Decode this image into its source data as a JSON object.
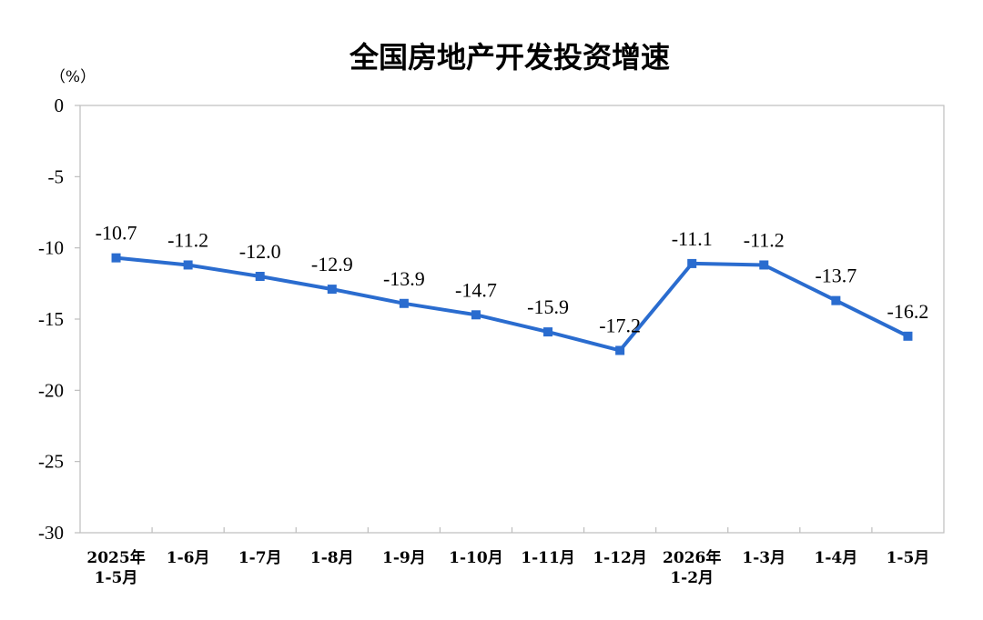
{
  "chart_data": {
    "type": "line",
    "title": "全国房地产开发投资增速",
    "unit_label": "（%）",
    "categories": [
      [
        "2025年",
        "1-5月"
      ],
      [
        "1-6月"
      ],
      [
        "1-7月"
      ],
      [
        "1-8月"
      ],
      [
        "1-9月"
      ],
      [
        "1-10月"
      ],
      [
        "1-11月"
      ],
      [
        "1-12月"
      ],
      [
        "2026年",
        "1-2月"
      ],
      [
        "1-3月"
      ],
      [
        "1-4月"
      ],
      [
        "1-5月"
      ]
    ],
    "values": [
      -10.7,
      -11.2,
      -12.0,
      -12.9,
      -13.9,
      -14.7,
      -15.9,
      -17.2,
      -11.1,
      -11.2,
      -13.7,
      -16.2
    ],
    "data_labels": [
      "-10.7",
      "-11.2",
      "-12.0",
      "-12.9",
      "-13.9",
      "-14.7",
      "-15.9",
      "-17.2",
      "-11.1",
      "-11.2",
      "-13.7",
      "-16.2"
    ],
    "ylim": [
      -30,
      0
    ],
    "yticks": [
      0,
      -5,
      -10,
      -15,
      -20,
      -25,
      -30
    ],
    "grid": false,
    "line_color": "#2a6ccf",
    "marker": "square"
  }
}
